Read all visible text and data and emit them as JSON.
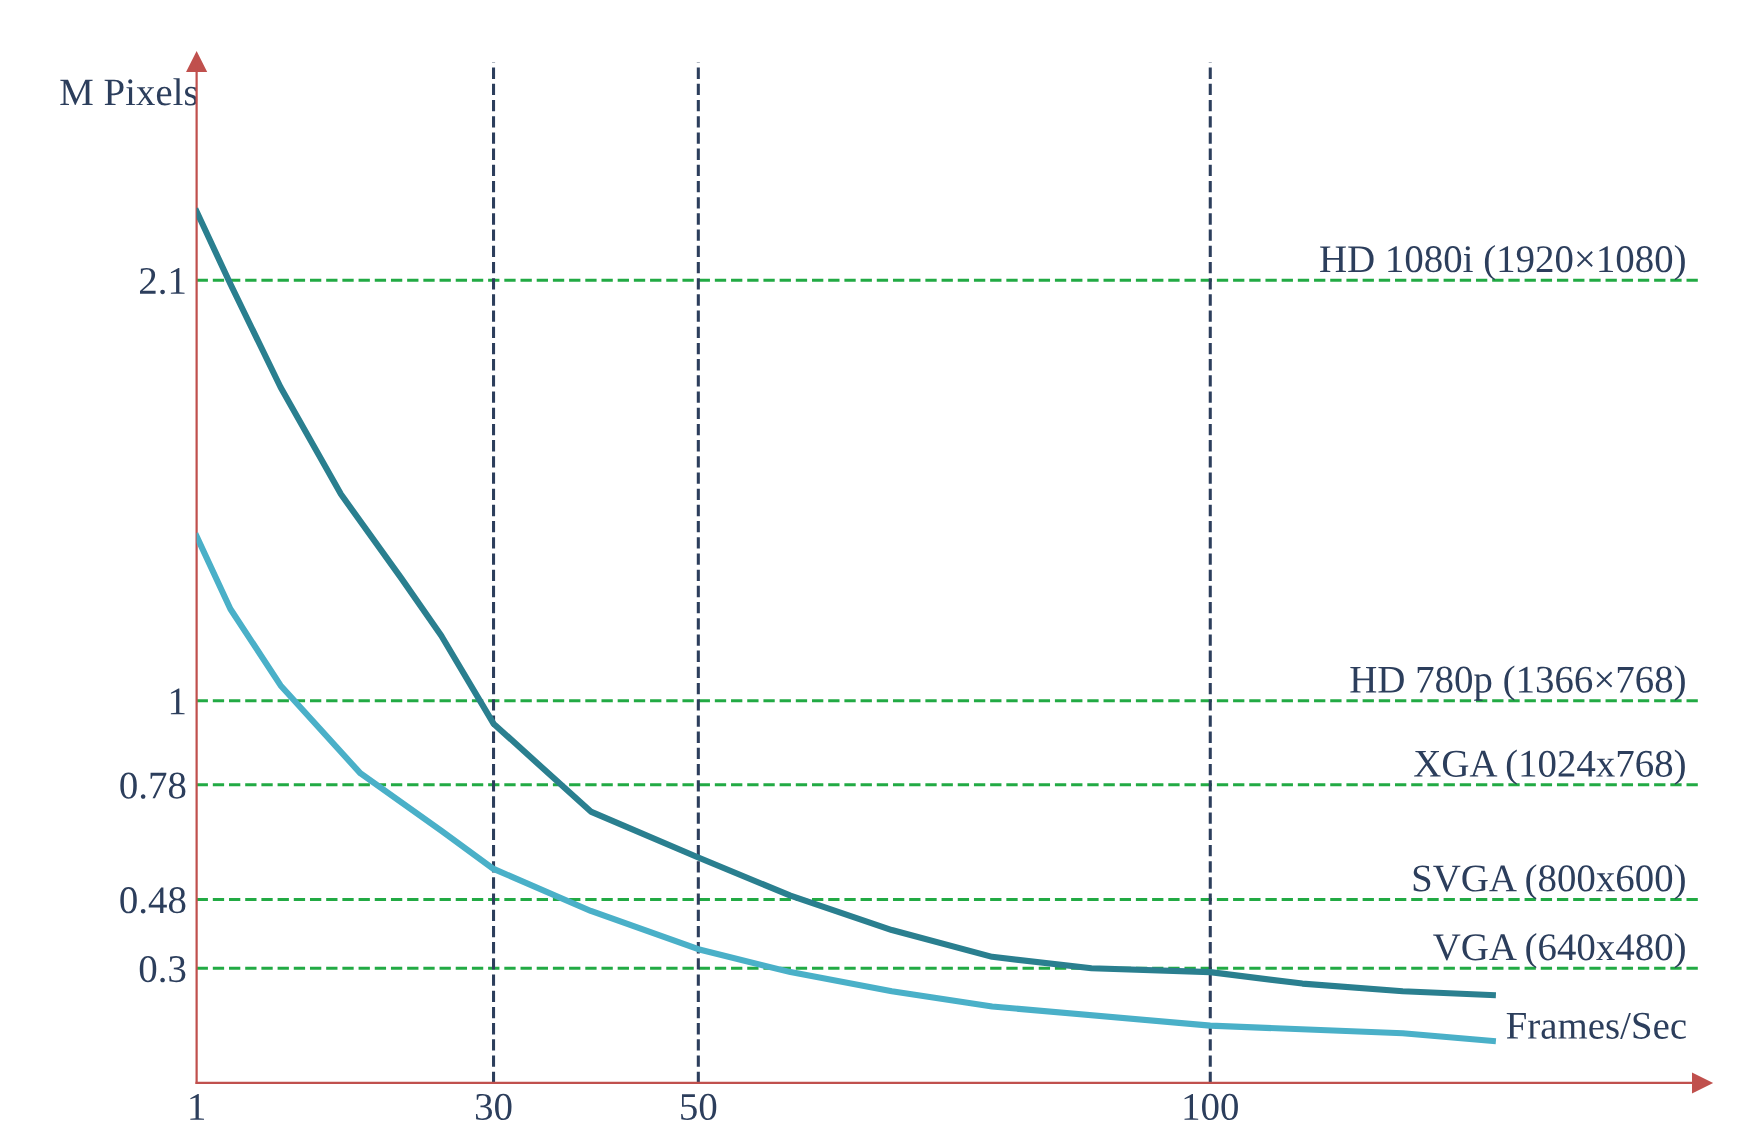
{
  "chart_data": {
    "type": "line",
    "xlabel": "Frames/Sec",
    "ylabel": "M Pixels",
    "xlim": [
      1,
      148
    ],
    "ylim": [
      0,
      2.67
    ],
    "xticks": [
      1,
      30,
      50,
      100
    ],
    "yticks": [
      0.3,
      0.48,
      0.78,
      1,
      2.1
    ],
    "grid": false,
    "legend": false,
    "marker": "none",
    "line_style": "solid",
    "series": [
      {
        "color": "#2a7f8f",
        "x": [
          1,
          4.3,
          9.2,
          15.1,
          21,
          24.9,
          30,
          39.5,
          50,
          59,
          68.9,
          78.7,
          88.4,
          100,
          109,
          118.8,
          127.6
        ],
        "values": [
          2.28,
          2.09,
          1.82,
          1.54,
          1.32,
          1.17,
          0.94,
          0.71,
          0.59,
          0.49,
          0.4,
          0.33,
          0.3,
          0.29,
          0.26,
          0.24,
          0.23
        ]
      },
      {
        "color": "#4ab0c8",
        "x": [
          1,
          4.3,
          9.2,
          17,
          24.9,
          30,
          39.5,
          50,
          59,
          68.9,
          78.7,
          100,
          118.8,
          127.6
        ],
        "values": [
          1.43,
          1.24,
          1.04,
          0.81,
          0.66,
          0.56,
          0.45,
          0.35,
          0.29,
          0.24,
          0.2,
          0.15,
          0.13,
          0.11
        ]
      }
    ],
    "ref_lines": [
      {
        "axis": "y",
        "value": 2.1,
        "label": "HD 1080i (1920×1080)",
        "color": "#22aa44",
        "line_style": "dashed"
      },
      {
        "axis": "y",
        "value": 1,
        "label": "HD 780p (1366×768)",
        "color": "#22aa44",
        "line_style": "dashed"
      },
      {
        "axis": "y",
        "value": 0.78,
        "label": "XGA (1024x768)",
        "color": "#22aa44",
        "line_style": "dashed"
      },
      {
        "axis": "y",
        "value": 0.48,
        "label": "SVGA (800x600)",
        "color": "#22aa44",
        "line_style": "dashed"
      },
      {
        "axis": "y",
        "value": 0.3,
        "label": "VGA (640x480)",
        "color": "#22aa44",
        "line_style": "dashed"
      },
      {
        "axis": "x",
        "value": 30,
        "color": "#2c3e5c",
        "line_style": "dashed"
      },
      {
        "axis": "x",
        "value": 50,
        "color": "#2c3e5c",
        "line_style": "dashed"
      },
      {
        "axis": "x",
        "value": 100,
        "color": "#2c3e5c",
        "line_style": "dashed"
      }
    ]
  }
}
